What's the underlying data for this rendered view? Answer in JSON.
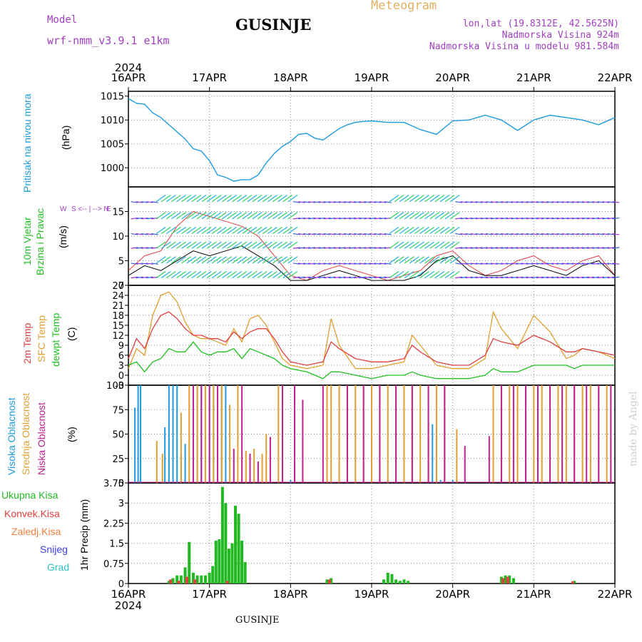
{
  "header": {
    "model_label": "Model",
    "model_name": "wrf-nmm_v3.9.1 e1km",
    "location": "GUSINJE",
    "meteogram": "Meteogram",
    "lonlat": "lon,lat (19.8312E, 42.5625N)",
    "elevation": "Nadmorska Visina 924m",
    "model_elevation": "Nadmorska Visina u modelu 981.584m"
  },
  "footer": {
    "location": "GUSINJE",
    "credit": "made by Angel"
  },
  "time_axis": {
    "year": "2024",
    "dates": [
      "16APR",
      "17APR",
      "18APR",
      "19APR",
      "20APR",
      "21APR",
      "22APR"
    ]
  },
  "colors": {
    "pressure": "#1e9be0",
    "wind_label": "#22c022",
    "temp": "#e04040",
    "sfc": "#e0a030",
    "dew": "#20c020",
    "high_cloud": "#1e9be0",
    "mid_cloud": "#e0a030",
    "low_cloud": "#c02090",
    "total_precip": "#22b822",
    "conv": "#e04040",
    "frozen": "#f08040",
    "snow": "#4040e0",
    "hail": "#30c0c0"
  },
  "chart_data": [
    {
      "type": "line",
      "panel": "pressure",
      "y_label_main": "Pritisak na nivou mora",
      "unit": "(hPa)",
      "ylim": [
        996,
        1016
      ],
      "yticks": [
        1000,
        1005,
        1010,
        1015
      ],
      "grid": true,
      "x_days": [
        0,
        0.1,
        0.2,
        0.3,
        0.4,
        0.5,
        0.6,
        0.7,
        0.8,
        0.9,
        1.0,
        1.1,
        1.2,
        1.3,
        1.4,
        1.5,
        1.6,
        1.7,
        1.8,
        1.9,
        2.0,
        2.1,
        2.2,
        2.3,
        2.4,
        2.5,
        2.6,
        2.7,
        2.8,
        2.9,
        3.0,
        3.2,
        3.4,
        3.6,
        3.8,
        4.0,
        4.2,
        4.4,
        4.6,
        4.8,
        5.0,
        5.2,
        5.4,
        5.6,
        5.8,
        6.0
      ],
      "series": [
        {
          "values": [
            1014.5,
            1013.5,
            1013.3,
            1011.5,
            1010.5,
            1009,
            1007.5,
            1006,
            1004,
            1003.5,
            1001.5,
            998.5,
            998,
            997.2,
            997.5,
            997.5,
            998.5,
            1001,
            1003,
            1004.5,
            1005.5,
            1007,
            1007.2,
            1006.2,
            1005.8,
            1007,
            1008.2,
            1009,
            1009.5,
            1009.7,
            1009.8,
            1009.5,
            1009.5,
            1008,
            1007,
            1009.8,
            1010,
            1011,
            1010,
            1007.8,
            1010,
            1011,
            1010.5,
            1010,
            1009,
            1010.5
          ]
        }
      ]
    },
    {
      "type": "line",
      "panel": "wind",
      "y_label_main": "10m Vjetar",
      "y_label_sub": "Brzina i Pravac",
      "unit": "(m/s)",
      "direction_key": [
        "N",
        "<--",
        "|",
        "-->",
        "S"
      ],
      "direction_key_w": "W",
      "direction_key_e": "E",
      "ylim": [
        0,
        20
      ],
      "yticks": [
        0,
        5,
        10,
        15
      ],
      "grid": true,
      "x_days": [
        0,
        0.2,
        0.4,
        0.6,
        0.8,
        1.0,
        1.2,
        1.4,
        1.6,
        1.8,
        2.0,
        2.2,
        2.4,
        2.6,
        2.8,
        3.0,
        3.2,
        3.4,
        3.6,
        3.8,
        4.0,
        4.2,
        4.4,
        4.6,
        4.8,
        5.0,
        5.2,
        5.4,
        5.6,
        5.8,
        6.0
      ],
      "series": [
        {
          "name": "speed",
          "values": [
            2,
            4,
            3,
            5,
            7,
            6,
            7,
            8,
            6,
            4,
            1,
            1,
            2,
            3,
            2,
            1,
            1,
            1,
            2,
            5,
            6,
            3,
            2,
            2,
            3,
            4,
            3,
            2,
            4,
            5,
            2
          ]
        },
        {
          "name": "gust",
          "values": [
            3,
            6,
            7,
            12,
            15,
            14,
            13,
            12,
            10,
            6,
            2,
            1,
            3,
            4,
            3,
            2,
            1,
            2,
            3,
            6,
            7,
            4,
            2,
            3,
            5,
            6,
            4,
            3,
            5,
            6,
            2
          ]
        }
      ]
    },
    {
      "type": "line",
      "panel": "temperature",
      "y_label_main": "2m Temp",
      "y_label_sub": "SFC Temp",
      "y_label_sub2": "dewpt Temp",
      "unit": "(C)",
      "ylim": [
        -3,
        27
      ],
      "yticks": [
        -3,
        0,
        3,
        6,
        9,
        12,
        15,
        18,
        21,
        24,
        27
      ],
      "grid": true,
      "x_days": [
        0,
        0.1,
        0.2,
        0.3,
        0.4,
        0.5,
        0.6,
        0.7,
        0.8,
        0.9,
        1.0,
        1.1,
        1.2,
        1.3,
        1.4,
        1.5,
        1.6,
        1.7,
        1.8,
        1.9,
        2.0,
        2.2,
        2.4,
        2.5,
        2.6,
        2.8,
        3.0,
        3.2,
        3.4,
        3.5,
        3.6,
        3.8,
        4.0,
        4.2,
        4.4,
        4.5,
        4.6,
        4.8,
        5.0,
        5.2,
        5.4,
        5.5,
        5.6,
        5.8,
        6.0
      ],
      "series": [
        {
          "name": "2m Temp",
          "values": [
            5,
            11,
            8,
            14,
            18,
            19,
            17,
            14,
            12,
            12,
            11,
            11,
            10,
            13,
            11,
            13,
            14,
            14,
            11,
            7,
            4,
            3,
            4,
            10,
            8,
            5,
            4,
            4,
            5,
            9,
            7,
            4,
            3,
            3,
            6,
            11,
            10,
            9,
            12,
            10,
            7,
            7,
            8,
            7,
            6
          ]
        },
        {
          "name": "SFC Temp",
          "values": [
            2,
            8,
            6,
            18,
            24,
            25,
            22,
            16,
            12,
            11,
            11,
            10,
            9,
            14,
            10,
            17,
            18,
            15,
            10,
            5,
            3,
            2,
            3,
            17,
            9,
            2,
            2,
            3,
            4,
            12,
            9,
            3,
            2,
            2,
            5,
            19,
            14,
            8,
            18,
            13,
            5,
            6,
            8,
            7,
            5
          ]
        },
        {
          "name": "dewpt Temp",
          "values": [
            3,
            4,
            1,
            4,
            5,
            8,
            7,
            7,
            10,
            7,
            6,
            7,
            7,
            8,
            5,
            8,
            7,
            6,
            5,
            3,
            2,
            1,
            -1,
            1,
            1,
            0,
            -1,
            0,
            0,
            1,
            0,
            -1,
            -1,
            -1,
            0,
            2,
            1,
            1,
            3,
            3,
            3,
            2,
            3,
            3,
            3
          ]
        }
      ]
    },
    {
      "type": "bar",
      "panel": "cloud",
      "y_label_main": "Visoka Oblacnost",
      "y_label_sub": "Srednja Oblacnost",
      "y_label_sub2": "Niska Oblacnost",
      "unit": "(%)",
      "ylim": [
        0,
        100
      ],
      "yticks": [
        0,
        25,
        50,
        75,
        100
      ],
      "grid": true,
      "series": [
        {
          "name": "high",
          "x_days": [
            0.08,
            0.12,
            0.15,
            0.45,
            0.5,
            0.55,
            0.6,
            0.65,
            0.7,
            0.8,
            0.85,
            0.9,
            0.95,
            1.0,
            1.05,
            1.1,
            1.15,
            1.2,
            2.0,
            3.2,
            3.7,
            3.75,
            3.8,
            3.85,
            4.0
          ],
          "values": [
            77,
            100,
            100,
            57,
            100,
            100,
            100,
            30,
            40,
            100,
            100,
            100,
            100,
            100,
            100,
            100,
            100,
            100,
            3,
            3,
            10,
            60,
            56,
            3,
            3
          ]
        },
        {
          "name": "mid",
          "x_days": [
            0.35,
            0.42,
            0.65,
            0.75,
            0.85,
            0.95,
            1.05,
            1.15,
            1.25,
            1.35,
            1.45,
            1.55,
            1.65,
            1.7,
            1.85,
            2.45,
            2.5,
            2.6,
            2.7,
            2.8,
            2.9,
            3.0,
            3.1,
            3.2,
            3.3,
            3.4,
            3.5,
            3.6,
            3.7,
            3.8,
            3.9,
            4.05,
            4.5,
            4.6,
            4.7,
            4.8,
            4.9,
            5.0,
            5.1,
            5.2,
            5.3,
            5.4,
            5.5,
            5.6,
            5.7,
            5.8,
            5.9
          ],
          "values": [
            43,
            30,
            72,
            100,
            100,
            100,
            100,
            100,
            80,
            100,
            33,
            35,
            30,
            50,
            100,
            100,
            100,
            100,
            100,
            100,
            100,
            100,
            100,
            100,
            100,
            100,
            100,
            100,
            100,
            100,
            100,
            55,
            100,
            100,
            100,
            100,
            100,
            100,
            100,
            100,
            100,
            100,
            100,
            100,
            100,
            100,
            100
          ]
        },
        {
          "name": "low",
          "x_days": [
            0.8,
            0.9,
            1.0,
            1.1,
            1.3,
            1.4,
            1.5,
            1.6,
            1.75,
            1.9,
            2.05,
            2.15,
            2.4,
            2.7,
            2.9,
            3.1,
            3.3,
            3.5,
            3.7,
            3.9,
            4.15,
            4.45,
            4.6,
            4.75,
            4.9,
            5.05,
            5.2,
            5.35,
            5.5,
            5.65,
            5.8,
            5.95
          ],
          "values": [
            100,
            100,
            100,
            100,
            35,
            100,
            30,
            22,
            47,
            100,
            100,
            85,
            100,
            100,
            100,
            100,
            100,
            100,
            100,
            100,
            38,
            48,
            100,
            100,
            100,
            100,
            100,
            100,
            100,
            100,
            100,
            100
          ]
        }
      ]
    },
    {
      "type": "bar",
      "panel": "precipitation",
      "legend": [
        "Ukupna Kisa",
        "Konvek.Kisa",
        "Zaledj.Kisa",
        "Snijeg",
        "Grad"
      ],
      "unit": "1hr Precip (mm)",
      "ylim": [
        0,
        3.75
      ],
      "yticks": [
        0,
        0.75,
        1.5,
        2.25,
        3,
        3.75
      ],
      "ytick_labels": [
        "0",
        "0.75",
        "1.5",
        "2.25",
        "3",
        "3.75"
      ],
      "grid": true,
      "series": [
        {
          "name": "Ukupna Kisa",
          "x_days": [
            0.5,
            0.55,
            0.6,
            0.65,
            0.7,
            0.75,
            0.8,
            0.85,
            0.9,
            0.95,
            1.0,
            1.04,
            1.08,
            1.12,
            1.16,
            1.2,
            1.24,
            1.28,
            1.32,
            1.36,
            1.4,
            1.44,
            2.45,
            2.5,
            3.15,
            3.2,
            3.25,
            3.3,
            3.35,
            3.4,
            3.45,
            4.6,
            4.65,
            4.7,
            4.75,
            5.5
          ],
          "values": [
            0.1,
            0.2,
            0.3,
            0.3,
            0.6,
            1.55,
            0.4,
            0.3,
            0.3,
            0.3,
            0.4,
            0.65,
            1.6,
            1.65,
            3.6,
            3.0,
            1.3,
            1.5,
            2.9,
            2.6,
            1.6,
            0.8,
            0.15,
            0.2,
            0.15,
            0.4,
            0.35,
            0.15,
            0.1,
            0.15,
            0.1,
            0.25,
            0.3,
            0.3,
            0.2,
            0.1
          ]
        },
        {
          "name": "Konvek.Kisa",
          "x_days": [
            0.52,
            0.62,
            0.72,
            0.82,
            1.22,
            2.48,
            4.62,
            4.68,
            5.48
          ],
          "values": [
            0.15,
            0.1,
            0.25,
            0.15,
            0.1,
            0.15,
            0.2,
            0.25,
            0.08
          ]
        }
      ]
    }
  ]
}
